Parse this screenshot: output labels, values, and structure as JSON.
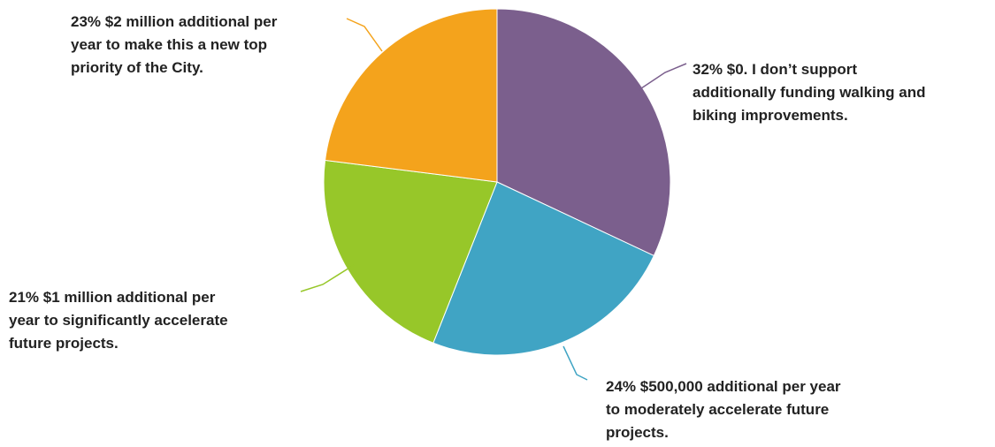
{
  "chart_data": {
    "type": "pie",
    "start_angle_deg": 0,
    "direction": "clockwise",
    "slices": [
      {
        "value": 32,
        "color": "#7B5F8D",
        "label_lines": [
          "32% $0. I don’t support",
          "additionally funding walking and",
          "biking improvements."
        ]
      },
      {
        "value": 24,
        "color": "#40A4C4",
        "label_lines": [
          "24% $500,000 additional per year",
          "to moderately accelerate future",
          "projects."
        ]
      },
      {
        "value": 21,
        "color": "#97C729",
        "label_lines": [
          "21% $1 million additional per",
          "year to significantly accelerate",
          "future projects."
        ]
      },
      {
        "value": 23,
        "color": "#F4A31C",
        "label_lines": [
          "23% $2 million additional per",
          "year to make this a new top",
          "priority of the City."
        ]
      }
    ]
  }
}
